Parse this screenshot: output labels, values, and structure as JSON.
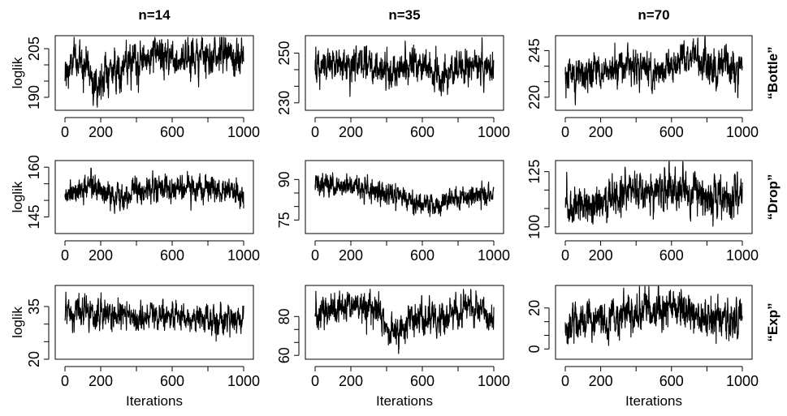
{
  "chart_data": {
    "type": "line",
    "layout": "3x3 grid of MCMC trace plots",
    "column_titles": [
      "n=14",
      "n=35",
      "n=70"
    ],
    "row_labels": [
      "“Bottle”",
      "“Drop”",
      "“Exp”"
    ],
    "ylabel": "loglik",
    "xlabel": "Iterations",
    "x_ticks": [
      0,
      200,
      600,
      1000
    ],
    "x_tick_labels": [
      "0",
      "200",
      "600",
      "1000"
    ],
    "xlim": [
      0,
      1000
    ],
    "panels": [
      {
        "row": 0,
        "col": 0,
        "ylim": [
          186,
          209
        ],
        "yticks": [
          190,
          205
        ],
        "ytick_labels": [
          "190",
          "205"
        ],
        "start": 195,
        "level": 200,
        "trend": [
          [
            0,
            196
          ],
          [
            50,
            201
          ],
          [
            120,
            201
          ],
          [
            180,
            193
          ],
          [
            230,
            198
          ],
          [
            400,
            200
          ],
          [
            500,
            203
          ],
          [
            700,
            202
          ],
          [
            880,
            204
          ],
          [
            1000,
            201
          ]
        ],
        "noise": 3.2
      },
      {
        "row": 1,
        "col": 0,
        "ylim": [
          140,
          162
        ],
        "yticks": [
          145,
          160
        ],
        "ytick_labels": [
          "145",
          "160"
        ],
        "start": 151,
        "level": 153,
        "trend": [
          [
            0,
            152
          ],
          [
            150,
            154
          ],
          [
            280,
            151
          ],
          [
            400,
            153
          ],
          [
            550,
            154
          ],
          [
            700,
            153
          ],
          [
            850,
            153
          ],
          [
            1000,
            152
          ]
        ],
        "noise": 2.2
      },
      {
        "row": 2,
        "col": 0,
        "ylim": [
          20,
          41
        ],
        "yticks": [
          20,
          35
        ],
        "ytick_labels": [
          "20",
          "35"
        ],
        "start": 31,
        "level": 32,
        "trend": [
          [
            0,
            33
          ],
          [
            300,
            32
          ],
          [
            600,
            32
          ],
          [
            900,
            31
          ],
          [
            1000,
            32
          ]
        ],
        "noise": 2.3
      },
      {
        "row": 0,
        "col": 1,
        "ylim": [
          227,
          257
        ],
        "yticks": [
          230,
          250
        ],
        "ytick_labels": [
          "230",
          "250"
        ],
        "start": 243,
        "level": 244,
        "trend": [
          [
            0,
            244
          ],
          [
            250,
            246
          ],
          [
            450,
            243
          ],
          [
            550,
            247
          ],
          [
            700,
            240
          ],
          [
            800,
            244
          ],
          [
            1000,
            244
          ]
        ],
        "noise": 3.8
      },
      {
        "row": 1,
        "col": 1,
        "ylim": [
          70,
          97
        ],
        "yticks": [
          75,
          90
        ],
        "ytick_labels": [
          "75",
          "90"
        ],
        "start": 88,
        "level": 85,
        "trend": [
          [
            0,
            88
          ],
          [
            200,
            88
          ],
          [
            450,
            84
          ],
          [
            600,
            80
          ],
          [
            750,
            82
          ],
          [
            1000,
            85
          ]
        ],
        "noise": 2.4
      },
      {
        "row": 2,
        "col": 1,
        "ylim": [
          58,
          96
        ],
        "yticks": [
          60,
          80
        ],
        "ytick_labels": [
          "60",
          "80"
        ],
        "start": 80,
        "level": 82,
        "trend": [
          [
            0,
            80
          ],
          [
            200,
            86
          ],
          [
            330,
            85
          ],
          [
            420,
            72
          ],
          [
            550,
            78
          ],
          [
            750,
            80
          ],
          [
            870,
            85
          ],
          [
            1000,
            80
          ]
        ],
        "noise": 4.5
      },
      {
        "row": 0,
        "col": 2,
        "ylim": [
          213,
          253
        ],
        "yticks": [
          220,
          245
        ],
        "ytick_labels": [
          "220",
          "245"
        ],
        "start": 232,
        "level": 234,
        "trend": [
          [
            0,
            232
          ],
          [
            200,
            234
          ],
          [
            400,
            237
          ],
          [
            520,
            232
          ],
          [
            650,
            240
          ],
          [
            720,
            243
          ],
          [
            800,
            236
          ],
          [
            1000,
            235
          ]
        ],
        "noise": 5.0
      },
      {
        "row": 1,
        "col": 2,
        "ylim": [
          97,
          130
        ],
        "yticks": [
          100,
          125
        ],
        "ytick_labels": [
          "100",
          "125"
        ],
        "start": 109,
        "level": 111,
        "trend": [
          [
            0,
            109
          ],
          [
            200,
            110
          ],
          [
            400,
            116
          ],
          [
            600,
            115
          ],
          [
            800,
            114
          ],
          [
            1000,
            113
          ]
        ],
        "noise": 5.0
      },
      {
        "row": 2,
        "col": 2,
        "ylim": [
          -5,
          31
        ],
        "yticks": [
          0,
          20
        ],
        "ytick_labels": [
          "0",
          "20"
        ],
        "start": 13,
        "level": 14,
        "trend": [
          [
            0,
            13
          ],
          [
            200,
            14
          ],
          [
            400,
            17
          ],
          [
            600,
            19
          ],
          [
            800,
            16
          ],
          [
            1000,
            14
          ]
        ],
        "noise": 5.2
      }
    ]
  }
}
